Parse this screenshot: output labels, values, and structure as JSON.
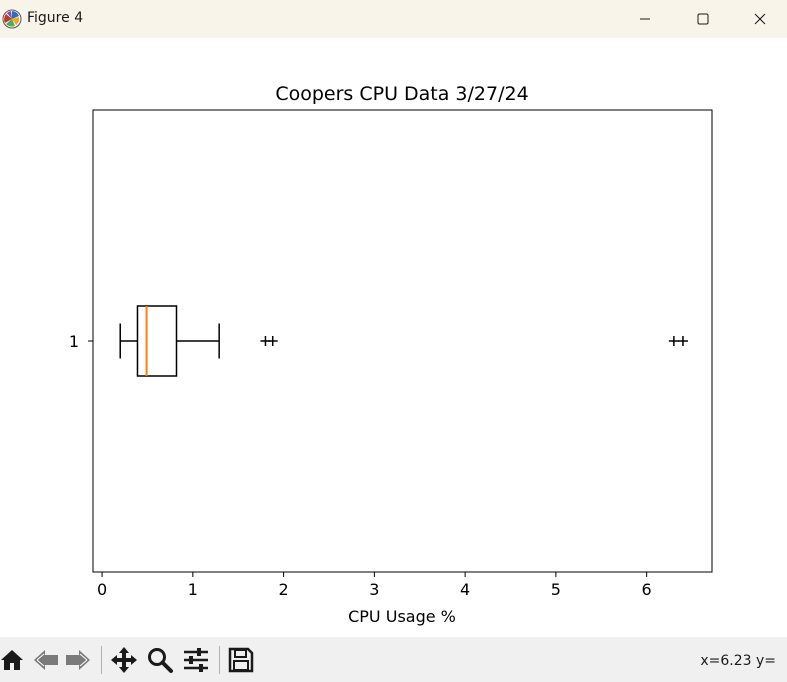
{
  "window": {
    "title": "Figure 4",
    "app_icon": "matplotlib-icon",
    "buttons": [
      "minimize-icon",
      "maximize-icon",
      "close-icon"
    ]
  },
  "chart_data": {
    "type": "boxplot",
    "orientation": "horizontal",
    "title": "Coopers CPU Data 3/27/24",
    "xlabel": "CPU Usage %",
    "ylabel": "",
    "xlim": [
      -0.1,
      6.72
    ],
    "xticks": [
      0,
      1,
      2,
      3,
      4,
      5,
      6
    ],
    "categories": [
      "1"
    ],
    "box": {
      "whisker_low": 0.2,
      "q1": 0.39,
      "median": 0.49,
      "q3": 0.82,
      "whisker_high": 1.29
    },
    "outliers": [
      1.8,
      1.88,
      6.3,
      6.4
    ],
    "colors": {
      "box": "#000000",
      "median": "#ff7f0e",
      "outlier": "#000000"
    },
    "grid": false
  },
  "toolbar": {
    "tools": [
      {
        "name": "home-icon"
      },
      {
        "name": "back-icon"
      },
      {
        "name": "forward-icon"
      },
      {
        "name": "pan-icon"
      },
      {
        "name": "zoom-icon"
      },
      {
        "name": "configure-subplots-icon"
      },
      {
        "name": "save-icon"
      }
    ],
    "coords": "x=6.23 y="
  }
}
